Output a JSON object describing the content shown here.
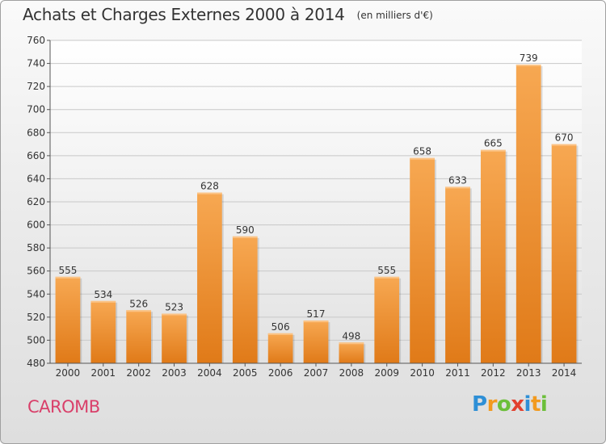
{
  "title": {
    "main": "Achats et Charges Externes 2000 à 2014",
    "unit": "(en milliers d'€)"
  },
  "commune": "CAROMB",
  "logo": {
    "text": "Proxiti",
    "letters": [
      {
        "ch": "P",
        "color": "#2e8fd6"
      },
      {
        "ch": "r",
        "color": "#f29a1f"
      },
      {
        "ch": "o",
        "color": "#6cbf3a"
      },
      {
        "ch": "x",
        "color": "#e2412f"
      },
      {
        "ch": "i",
        "color": "#2e8fd6"
      },
      {
        "ch": "t",
        "color": "#f29a1f"
      },
      {
        "ch": "i",
        "color": "#6cbf3a"
      }
    ]
  },
  "colors": {
    "bar_top": "#f7a852",
    "bar_bottom": "#e07a18",
    "axis": "#555555",
    "grid": "#c8c8c8",
    "text": "#333333"
  },
  "chart_data": {
    "type": "bar",
    "categories": [
      "2000",
      "2001",
      "2002",
      "2003",
      "2004",
      "2005",
      "2006",
      "2007",
      "2008",
      "2009",
      "2010",
      "2011",
      "2012",
      "2013",
      "2014"
    ],
    "values": [
      555,
      534,
      526,
      523,
      628,
      590,
      506,
      517,
      498,
      555,
      658,
      633,
      665,
      739,
      670
    ],
    "ylim": [
      480,
      760
    ],
    "yticks": [
      480,
      500,
      520,
      540,
      560,
      580,
      600,
      620,
      640,
      660,
      680,
      700,
      720,
      740,
      760
    ],
    "grid": true,
    "data_labels": true
  }
}
